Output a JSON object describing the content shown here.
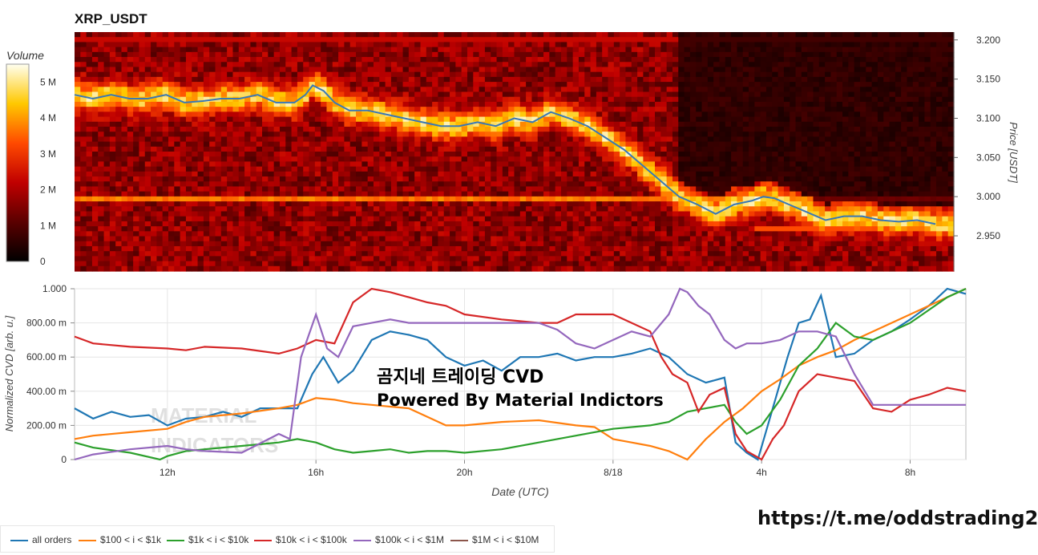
{
  "overlay": {
    "line1": "곰지네 트레이딩 CVD",
    "line2": "Powered By Material Indictors",
    "link": "https://t.me/oddstrading2",
    "watermark": "MATERIAL INDICATORS"
  },
  "chart_data": [
    {
      "type": "heatmap",
      "title": "XRP_USDT",
      "ylabel": "Price [USDT]",
      "ylim": [
        2.905,
        3.21
      ],
      "yticks": [
        "3.200",
        "3.150",
        "3.100",
        "3.050",
        "3.000",
        "2.950"
      ],
      "ytick_values": [
        3.2,
        3.15,
        3.1,
        3.05,
        3.0,
        2.95
      ],
      "colorbar": {
        "label": "Volume",
        "ticks": [
          "0",
          "1 M",
          "2 M",
          "3 M",
          "4 M",
          "5 M"
        ],
        "range": [
          0,
          5.5
        ]
      },
      "price_line": {
        "color": "#3a78b5",
        "x": [
          9.5,
          10,
          10.5,
          11,
          11.5,
          12,
          12.5,
          13,
          13.5,
          14,
          14.5,
          15,
          15.5,
          15.8,
          16,
          16.3,
          16.6,
          17,
          17.5,
          18,
          18.5,
          19,
          19.5,
          20,
          20.5,
          21,
          21.5,
          22,
          22.5,
          23,
          23.5,
          24,
          24.5,
          25,
          25.5,
          26,
          26.5,
          27,
          27.5,
          28,
          28.3,
          28.6,
          29,
          29.5,
          30,
          30.5,
          31,
          31.5,
          32,
          32.5,
          33
        ],
        "y": [
          3.13,
          3.125,
          3.13,
          3.125,
          3.125,
          3.13,
          3.12,
          3.122,
          3.125,
          3.125,
          3.13,
          3.12,
          3.12,
          3.13,
          3.142,
          3.135,
          3.12,
          3.11,
          3.11,
          3.105,
          3.1,
          3.095,
          3.09,
          3.09,
          3.095,
          3.09,
          3.1,
          3.095,
          3.108,
          3.1,
          3.09,
          3.075,
          3.06,
          3.04,
          3.02,
          3.0,
          2.99,
          2.978,
          2.99,
          2.995,
          3.0,
          2.998,
          2.99,
          2.98,
          2.97,
          2.975,
          2.975,
          2.97,
          2.968,
          2.97,
          2.965
        ]
      }
    },
    {
      "type": "line",
      "xlabel": "Date (UTC)",
      "ylabel": "Normalized CVD [arb. u.]",
      "xlim": [
        9.5,
        33.5
      ],
      "ylim": [
        0,
        1.0
      ],
      "xticks": [
        "12h",
        "16h",
        "20h",
        "8/18",
        "4h",
        "8h"
      ],
      "xtick_values": [
        12,
        16,
        20,
        24,
        28,
        32
      ],
      "yticks": [
        "0",
        "200.00 m",
        "400.00 m",
        "600.00 m",
        "800.00 m",
        "1.000"
      ],
      "ytick_values": [
        0,
        0.2,
        0.4,
        0.6,
        0.8,
        1.0
      ],
      "series": [
        {
          "name": "all orders",
          "color": "#1f77b4",
          "x": [
            9.5,
            10,
            10.5,
            11,
            11.5,
            12,
            12.5,
            13,
            13.5,
            14,
            14.5,
            15,
            15.5,
            15.9,
            16.2,
            16.6,
            17,
            17.5,
            18,
            18.5,
            19,
            19.5,
            20,
            20.5,
            21,
            21.5,
            22,
            22.5,
            23,
            23.5,
            24,
            24.5,
            25,
            25.5,
            26,
            26.5,
            27,
            27.3,
            27.6,
            27.9,
            28.3,
            28.7,
            29,
            29.3,
            29.6,
            30,
            30.5,
            31,
            31.5,
            32,
            32.5,
            33,
            33.5
          ],
          "y": [
            0.3,
            0.24,
            0.28,
            0.25,
            0.26,
            0.2,
            0.24,
            0.25,
            0.28,
            0.25,
            0.3,
            0.3,
            0.3,
            0.5,
            0.6,
            0.45,
            0.52,
            0.7,
            0.75,
            0.73,
            0.7,
            0.6,
            0.55,
            0.58,
            0.52,
            0.6,
            0.6,
            0.62,
            0.58,
            0.6,
            0.6,
            0.62,
            0.65,
            0.6,
            0.5,
            0.45,
            0.48,
            0.1,
            0.04,
            0.0,
            0.3,
            0.6,
            0.8,
            0.82,
            0.96,
            0.6,
            0.62,
            0.7,
            0.75,
            0.82,
            0.9,
            1.0,
            0.97
          ]
        },
        {
          "name": "$100 < i < $1k",
          "color": "#ff7f0e",
          "x": [
            9.5,
            10,
            11,
            12,
            12.5,
            13,
            14,
            15,
            15.5,
            16,
            16.5,
            17,
            17.5,
            18,
            18.5,
            19,
            19.5,
            20,
            21,
            22,
            23,
            23.5,
            24,
            24.5,
            25,
            25.5,
            26,
            26.5,
            27,
            27.5,
            28,
            28.5,
            29,
            29.5,
            30,
            30.5,
            31,
            32,
            33,
            33.5
          ],
          "y": [
            0.12,
            0.14,
            0.16,
            0.18,
            0.22,
            0.25,
            0.27,
            0.3,
            0.32,
            0.36,
            0.35,
            0.33,
            0.32,
            0.31,
            0.3,
            0.25,
            0.2,
            0.2,
            0.22,
            0.23,
            0.2,
            0.19,
            0.12,
            0.1,
            0.08,
            0.05,
            0.0,
            0.12,
            0.22,
            0.3,
            0.4,
            0.47,
            0.55,
            0.6,
            0.64,
            0.7,
            0.75,
            0.85,
            0.95,
            1.0
          ]
        },
        {
          "name": "$1k < i < $10k",
          "color": "#2ca02c",
          "x": [
            9.5,
            10,
            11,
            11.8,
            12,
            12.5,
            13,
            14,
            15,
            15.5,
            16,
            16.5,
            17,
            17.5,
            18,
            18.5,
            19,
            19.5,
            20,
            21,
            22,
            23,
            24,
            25,
            25.5,
            26,
            26.5,
            27,
            27.3,
            27.6,
            28,
            28.5,
            29,
            29.5,
            30,
            30.5,
            31,
            32,
            33,
            33.5
          ],
          "y": [
            0.1,
            0.07,
            0.04,
            0.0,
            0.02,
            0.05,
            0.06,
            0.08,
            0.1,
            0.12,
            0.1,
            0.06,
            0.04,
            0.05,
            0.06,
            0.04,
            0.05,
            0.05,
            0.04,
            0.06,
            0.1,
            0.14,
            0.18,
            0.2,
            0.22,
            0.28,
            0.3,
            0.32,
            0.22,
            0.15,
            0.2,
            0.35,
            0.55,
            0.65,
            0.8,
            0.72,
            0.7,
            0.8,
            0.95,
            1.0
          ]
        },
        {
          "name": "$10k < i < $100k",
          "color": "#d62728",
          "x": [
            9.5,
            10,
            11,
            12,
            12.5,
            13,
            14,
            15,
            15.5,
            16,
            16.5,
            17,
            17.5,
            18,
            18.5,
            19,
            19.5,
            20,
            21,
            22,
            22.5,
            23,
            23.5,
            24,
            24.5,
            25,
            25.3,
            25.6,
            26,
            26.3,
            26.6,
            27,
            27.3,
            27.6,
            28,
            28.3,
            28.6,
            29,
            29.5,
            30,
            30.5,
            31,
            31.5,
            32,
            32.5,
            33,
            33.5
          ],
          "y": [
            0.72,
            0.68,
            0.66,
            0.65,
            0.64,
            0.66,
            0.65,
            0.62,
            0.65,
            0.7,
            0.68,
            0.92,
            1.0,
            0.98,
            0.95,
            0.92,
            0.9,
            0.85,
            0.82,
            0.8,
            0.8,
            0.85,
            0.85,
            0.85,
            0.8,
            0.75,
            0.6,
            0.5,
            0.45,
            0.28,
            0.38,
            0.42,
            0.15,
            0.05,
            0.0,
            0.12,
            0.2,
            0.4,
            0.5,
            0.48,
            0.46,
            0.3,
            0.28,
            0.35,
            0.38,
            0.42,
            0.4
          ]
        },
        {
          "name": "$100k < i < $1M",
          "color": "#9467bd",
          "x": [
            9.5,
            10,
            11,
            12,
            12.5,
            13,
            14,
            15,
            15.3,
            15.6,
            16,
            16.3,
            16.6,
            17,
            17.5,
            18,
            18.5,
            19,
            20,
            21,
            22,
            22.5,
            23,
            23.5,
            24,
            24.5,
            25,
            25.5,
            25.8,
            26,
            26.3,
            26.6,
            27,
            27.3,
            27.6,
            28,
            28.5,
            29,
            29.5,
            30,
            30.5,
            31,
            32,
            33,
            33.5
          ],
          "y": [
            0.0,
            0.03,
            0.06,
            0.08,
            0.06,
            0.05,
            0.04,
            0.15,
            0.12,
            0.6,
            0.85,
            0.65,
            0.6,
            0.78,
            0.8,
            0.82,
            0.8,
            0.8,
            0.8,
            0.8,
            0.8,
            0.76,
            0.68,
            0.65,
            0.7,
            0.75,
            0.72,
            0.85,
            1.0,
            0.98,
            0.9,
            0.85,
            0.7,
            0.65,
            0.68,
            0.68,
            0.7,
            0.75,
            0.75,
            0.72,
            0.5,
            0.32,
            0.32,
            0.32,
            0.32
          ]
        },
        {
          "name": "$1M < i < $10M",
          "color": "#8c564b",
          "x": [],
          "y": []
        }
      ]
    }
  ]
}
